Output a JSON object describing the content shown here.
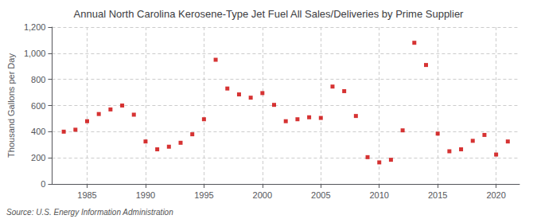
{
  "chart_data": {
    "type": "scatter",
    "title": "Annual North Carolina Kerosene-Type Jet Fuel All Sales/Deliveries by Prime Supplier",
    "ylabel": "Thousand Gallons per Day",
    "annotation": "Source: U.S. Energy Information Administration",
    "x": [
      1983,
      1984,
      1985,
      1986,
      1987,
      1988,
      1989,
      1990,
      1991,
      1992,
      1993,
      1994,
      1995,
      1996,
      1997,
      1998,
      1999,
      2000,
      2001,
      2002,
      2003,
      2004,
      2005,
      2006,
      2007,
      2008,
      2009,
      2010,
      2011,
      2012,
      2013,
      2014,
      2015,
      2016,
      2017,
      2018,
      2019,
      2020,
      2021
    ],
    "values": [
      400,
      415,
      480,
      535,
      570,
      600,
      530,
      325,
      265,
      285,
      315,
      380,
      495,
      950,
      730,
      685,
      660,
      695,
      605,
      480,
      495,
      510,
      505,
      745,
      710,
      520,
      205,
      165,
      185,
      410,
      1080,
      910,
      385,
      250,
      265,
      330,
      375,
      225,
      325
    ],
    "color": "#cc0000",
    "marker": "square",
    "xlim": [
      1982,
      2022
    ],
    "xticks": [
      1985,
      1990,
      1995,
      2000,
      2005,
      2010,
      2015,
      2020
    ],
    "ylim": [
      0,
      1200
    ],
    "yticks": [
      0,
      200,
      400,
      600,
      800,
      {
        "value": 1000,
        "label": "1,000"
      },
      {
        "value": 1200,
        "label": "1,200"
      }
    ],
    "grid": true
  }
}
